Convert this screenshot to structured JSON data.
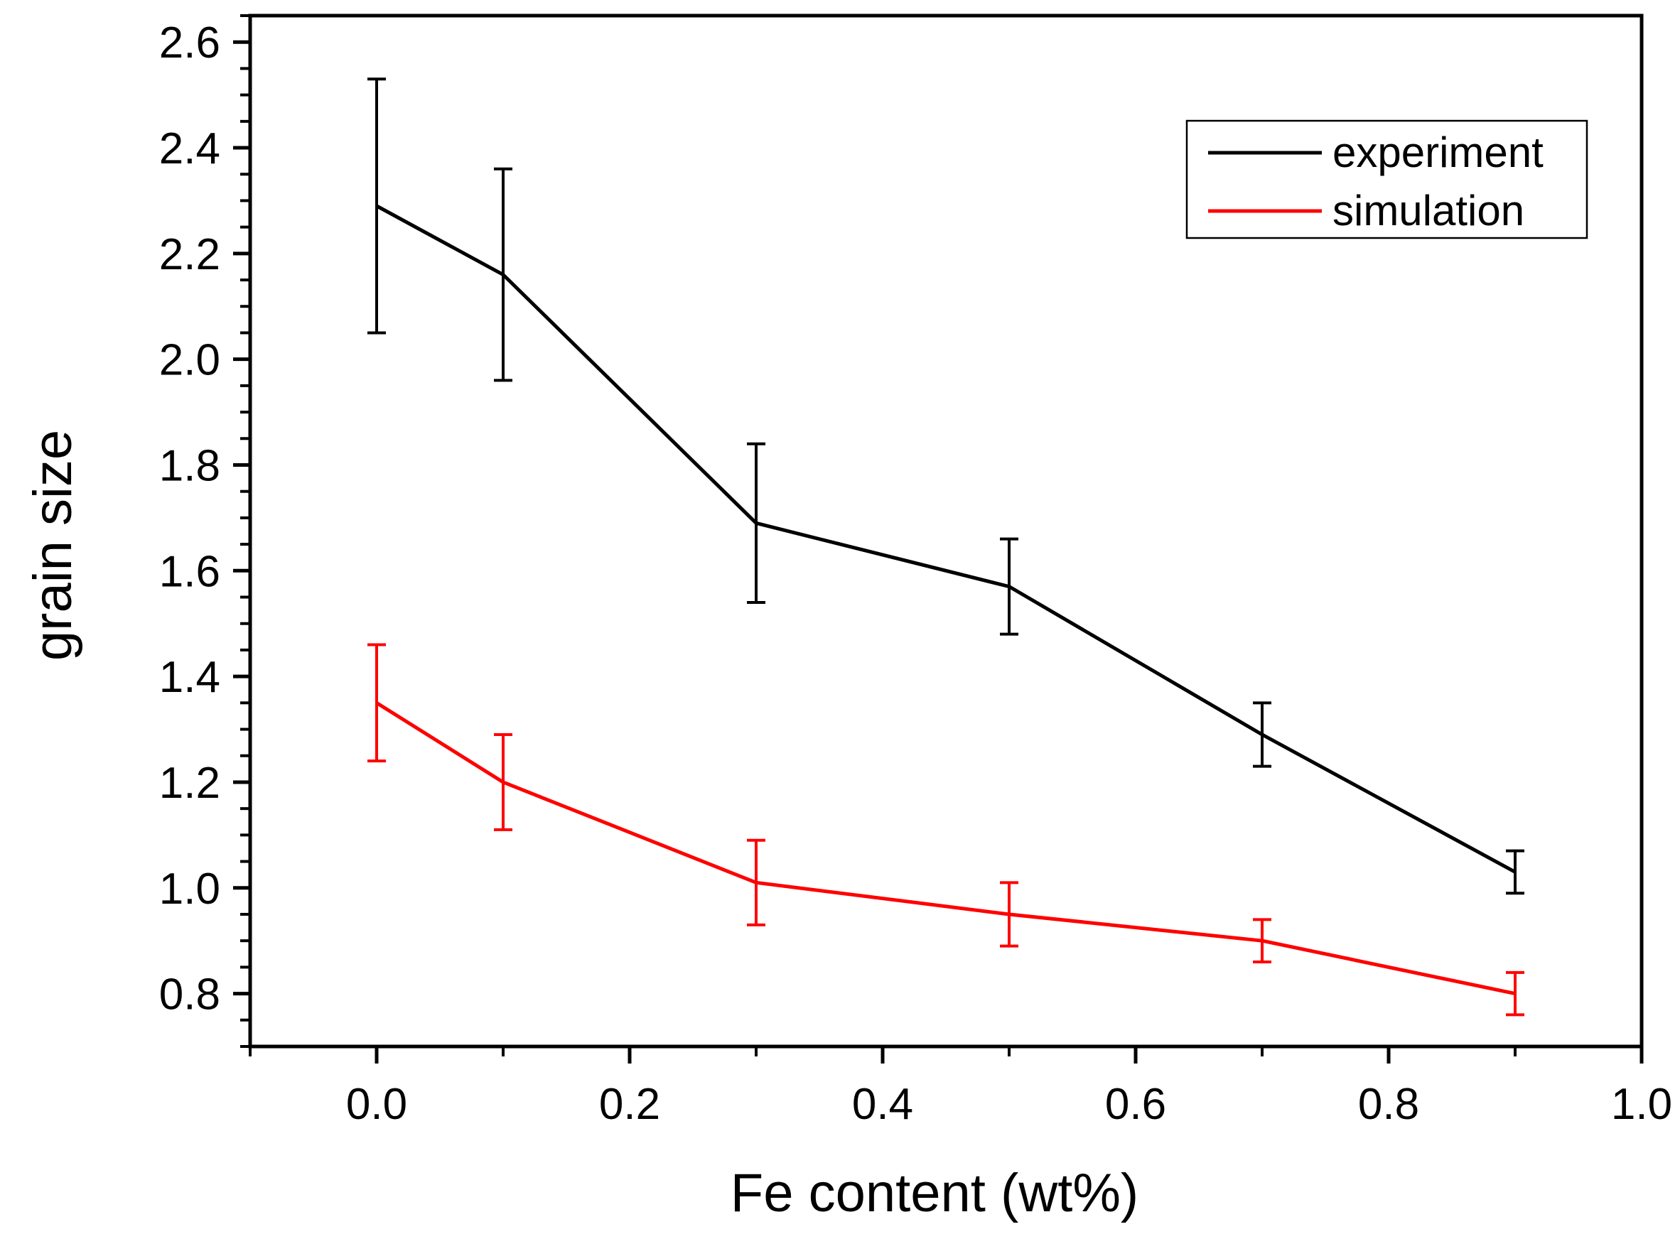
{
  "chart_data": {
    "type": "line",
    "title": "",
    "xlabel": "Fe content (wt%)",
    "ylabel": "grain size",
    "xlim": [
      -0.1,
      1.0
    ],
    "ylim": [
      0.7,
      2.65
    ],
    "x_ticks": [
      0.0,
      0.2,
      0.4,
      0.6,
      0.8,
      1.0
    ],
    "x_tick_labels": [
      "0.0",
      "0.2",
      "0.4",
      "0.6",
      "0.8",
      "1.0"
    ],
    "y_ticks": [
      0.8,
      1.0,
      1.2,
      1.4,
      1.6,
      1.8,
      2.0,
      2.2,
      2.4,
      2.6
    ],
    "y_tick_labels": [
      "0.8",
      "1.0",
      "1.2",
      "1.4",
      "1.6",
      "1.8",
      "2.0",
      "2.2",
      "2.4",
      "2.6"
    ],
    "grid": false,
    "legend_position": "top-right",
    "series": [
      {
        "name": "experiment",
        "color": "#000000",
        "x": [
          0.0,
          0.1,
          0.3,
          0.5,
          0.7,
          0.9
        ],
        "y": [
          2.29,
          2.16,
          1.69,
          1.57,
          1.29,
          1.03
        ],
        "error_low": [
          2.05,
          1.96,
          1.54,
          1.48,
          1.23,
          0.99
        ],
        "error_high": [
          2.53,
          2.36,
          1.84,
          1.66,
          1.35,
          1.07
        ]
      },
      {
        "name": "simulation",
        "color": "#ff0000",
        "x": [
          0.0,
          0.1,
          0.3,
          0.5,
          0.7,
          0.9
        ],
        "y": [
          1.35,
          1.2,
          1.01,
          0.95,
          0.9,
          0.8
        ],
        "error_low": [
          1.24,
          1.11,
          0.93,
          0.89,
          0.86,
          0.76
        ],
        "error_high": [
          1.46,
          1.29,
          1.09,
          1.01,
          0.94,
          0.84
        ]
      }
    ]
  }
}
